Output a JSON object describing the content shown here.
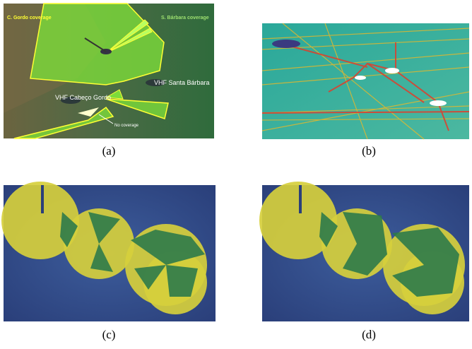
{
  "panels": [
    {
      "label": "(a)",
      "annotations": {
        "left_coverage": "C. Gordo coverage",
        "right_coverage": "S. Bárbara coverage",
        "station_1": "VHF Cabeço Gordo",
        "station_2": "VHF Santa Bárbara",
        "gap": "No coverage"
      }
    },
    {
      "label": "(b)"
    },
    {
      "label": "(c)"
    },
    {
      "label": "(d)"
    }
  ]
}
